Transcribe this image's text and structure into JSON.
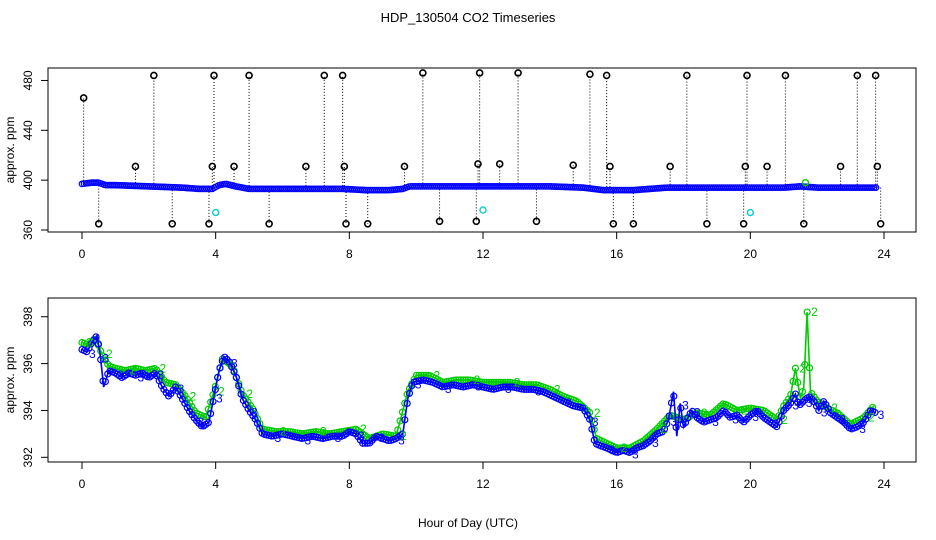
{
  "title": "HDP_130504  CO2 Timeseries",
  "xlabel": "Hour of Day (UTC)",
  "colors": {
    "black": "#000000",
    "blue": "#0000ff",
    "green": "#00cc00",
    "cyan": "#00cccc"
  },
  "chart_data": [
    {
      "type": "scatter",
      "panel": "top",
      "ylabel": "approx. ppm",
      "xlim": [
        0,
        24
      ],
      "ylim": [
        360,
        490
      ],
      "xticks": [
        0,
        4,
        8,
        12,
        16,
        20,
        24
      ],
      "yticks": [
        360,
        400,
        440,
        480
      ],
      "baseline": [
        [
          0.0,
          397
        ],
        [
          0.3,
          398
        ],
        [
          0.5,
          398
        ],
        [
          0.7,
          396
        ],
        [
          1.0,
          396
        ],
        [
          2.0,
          395
        ],
        [
          3.0,
          394
        ],
        [
          3.5,
          393
        ],
        [
          3.9,
          393
        ],
        [
          4.1,
          396
        ],
        [
          4.3,
          397
        ],
        [
          4.6,
          395
        ],
        [
          5.0,
          393
        ],
        [
          6.0,
          393
        ],
        [
          7.0,
          393
        ],
        [
          7.8,
          393
        ],
        [
          8.5,
          392
        ],
        [
          9.2,
          392
        ],
        [
          9.6,
          393
        ],
        [
          9.8,
          395
        ],
        [
          10.5,
          395
        ],
        [
          12.0,
          395
        ],
        [
          13.0,
          395
        ],
        [
          14.0,
          395
        ],
        [
          15.0,
          394
        ],
        [
          15.3,
          393
        ],
        [
          15.6,
          392
        ],
        [
          16.5,
          392
        ],
        [
          17.5,
          394
        ],
        [
          18.5,
          394
        ],
        [
          19.5,
          394
        ],
        [
          20.0,
          394
        ],
        [
          21.0,
          394
        ],
        [
          21.5,
          395
        ],
        [
          22.0,
          394
        ],
        [
          23.0,
          394
        ],
        [
          23.8,
          394
        ]
      ],
      "spikes": [
        {
          "x": 0.05,
          "y": 466
        },
        {
          "x": 0.5,
          "y": 365
        },
        {
          "x": 1.6,
          "y": 411
        },
        {
          "x": 2.15,
          "y": 484
        },
        {
          "x": 2.7,
          "y": 365
        },
        {
          "x": 3.8,
          "y": 365
        },
        {
          "x": 3.9,
          "y": 411
        },
        {
          "x": 3.95,
          "y": 484
        },
        {
          "x": 4.55,
          "y": 411
        },
        {
          "x": 5.0,
          "y": 484
        },
        {
          "x": 5.6,
          "y": 365
        },
        {
          "x": 6.7,
          "y": 411
        },
        {
          "x": 7.25,
          "y": 484
        },
        {
          "x": 7.8,
          "y": 484
        },
        {
          "x": 7.85,
          "y": 411
        },
        {
          "x": 7.9,
          "y": 365
        },
        {
          "x": 8.55,
          "y": 365
        },
        {
          "x": 9.65,
          "y": 411
        },
        {
          "x": 10.2,
          "y": 486
        },
        {
          "x": 10.7,
          "y": 367
        },
        {
          "x": 11.8,
          "y": 367
        },
        {
          "x": 11.85,
          "y": 413
        },
        {
          "x": 11.9,
          "y": 486
        },
        {
          "x": 12.5,
          "y": 413
        },
        {
          "x": 13.05,
          "y": 486
        },
        {
          "x": 13.6,
          "y": 367
        },
        {
          "x": 14.7,
          "y": 412
        },
        {
          "x": 15.2,
          "y": 485
        },
        {
          "x": 15.7,
          "y": 484
        },
        {
          "x": 15.8,
          "y": 411
        },
        {
          "x": 15.9,
          "y": 365
        },
        {
          "x": 16.5,
          "y": 365
        },
        {
          "x": 17.6,
          "y": 411
        },
        {
          "x": 18.1,
          "y": 484
        },
        {
          "x": 18.7,
          "y": 365
        },
        {
          "x": 19.8,
          "y": 365
        },
        {
          "x": 19.85,
          "y": 411
        },
        {
          "x": 19.9,
          "y": 484
        },
        {
          "x": 20.5,
          "y": 411
        },
        {
          "x": 21.05,
          "y": 484
        },
        {
          "x": 21.6,
          "y": 365
        },
        {
          "x": 22.7,
          "y": 411
        },
        {
          "x": 23.2,
          "y": 484
        },
        {
          "x": 23.75,
          "y": 484
        },
        {
          "x": 23.8,
          "y": 411
        },
        {
          "x": 23.9,
          "y": 365
        }
      ],
      "cyan_points": [
        {
          "x": 4.0,
          "y": 374
        },
        {
          "x": 12.0,
          "y": 376
        },
        {
          "x": 20.0,
          "y": 374
        }
      ],
      "green_points": [
        {
          "x": 21.65,
          "y": 398
        }
      ]
    },
    {
      "type": "line",
      "panel": "bottom",
      "ylabel": "approx. ppm",
      "xlim": [
        0,
        24
      ],
      "ylim": [
        391.8,
        398.8
      ],
      "xticks": [
        0,
        4,
        8,
        12,
        16,
        20,
        24
      ],
      "yticks": [
        392,
        394,
        396,
        398
      ],
      "series": [
        {
          "name": "3",
          "label": "3",
          "points": [
            [
              0.0,
              396.6
            ],
            [
              0.15,
              396.5
            ],
            [
              0.3,
              396.9
            ],
            [
              0.45,
              397.2
            ],
            [
              0.55,
              396.3
            ],
            [
              0.65,
              395.0
            ],
            [
              0.8,
              395.7
            ],
            [
              1.0,
              395.6
            ],
            [
              1.2,
              395.4
            ],
            [
              1.4,
              395.6
            ],
            [
              1.6,
              395.5
            ],
            [
              1.8,
              395.6
            ],
            [
              2.0,
              395.4
            ],
            [
              2.2,
              395.6
            ],
            [
              2.4,
              395.0
            ],
            [
              2.6,
              394.6
            ],
            [
              2.8,
              395.0
            ],
            [
              3.0,
              394.5
            ],
            [
              3.2,
              394.0
            ],
            [
              3.4,
              393.6
            ],
            [
              3.6,
              393.3
            ],
            [
              3.8,
              393.5
            ],
            [
              3.95,
              394.6
            ],
            [
              4.1,
              395.7
            ],
            [
              4.25,
              396.3
            ],
            [
              4.4,
              396.1
            ],
            [
              4.6,
              395.5
            ],
            [
              4.8,
              394.5
            ],
            [
              5.0,
              394.0
            ],
            [
              5.2,
              393.6
            ],
            [
              5.4,
              393.0
            ],
            [
              5.7,
              392.9
            ],
            [
              6.0,
              393.0
            ],
            [
              6.3,
              392.9
            ],
            [
              6.6,
              392.8
            ],
            [
              6.9,
              392.9
            ],
            [
              7.2,
              392.8
            ],
            [
              7.5,
              392.9
            ],
            [
              7.8,
              392.9
            ],
            [
              8.0,
              393.1
            ],
            [
              8.2,
              393.0
            ],
            [
              8.4,
              392.6
            ],
            [
              8.6,
              392.6
            ],
            [
              8.8,
              392.9
            ],
            [
              9.0,
              392.8
            ],
            [
              9.2,
              392.7
            ],
            [
              9.4,
              392.8
            ],
            [
              9.6,
              393.0
            ],
            [
              9.75,
              394.5
            ],
            [
              9.9,
              395.2
            ],
            [
              10.2,
              395.3
            ],
            [
              10.5,
              395.2
            ],
            [
              10.8,
              395.0
            ],
            [
              11.1,
              395.1
            ],
            [
              11.4,
              395.0
            ],
            [
              11.7,
              395.1
            ],
            [
              12.0,
              395.0
            ],
            [
              12.3,
              394.9
            ],
            [
              12.6,
              395.0
            ],
            [
              12.9,
              395.0
            ],
            [
              13.2,
              394.9
            ],
            [
              13.5,
              394.9
            ],
            [
              13.8,
              394.8
            ],
            [
              14.1,
              394.6
            ],
            [
              14.4,
              394.4
            ],
            [
              14.7,
              394.2
            ],
            [
              15.0,
              394.1
            ],
            [
              15.2,
              393.6
            ],
            [
              15.35,
              392.6
            ],
            [
              15.5,
              392.5
            ],
            [
              15.7,
              392.4
            ],
            [
              16.0,
              392.2
            ],
            [
              16.2,
              392.3
            ],
            [
              16.4,
              392.2
            ],
            [
              16.6,
              392.4
            ],
            [
              16.8,
              392.5
            ],
            [
              17.0,
              392.7
            ],
            [
              17.2,
              393.0
            ],
            [
              17.4,
              393.1
            ],
            [
              17.55,
              393.6
            ],
            [
              17.7,
              394.8
            ],
            [
              17.8,
              392.9
            ],
            [
              17.9,
              394.3
            ],
            [
              18.0,
              393.3
            ],
            [
              18.1,
              393.6
            ],
            [
              18.25,
              394.0
            ],
            [
              18.4,
              393.7
            ],
            [
              18.6,
              393.5
            ],
            [
              18.8,
              393.6
            ],
            [
              19.0,
              393.7
            ],
            [
              19.2,
              394.0
            ],
            [
              19.4,
              393.7
            ],
            [
              19.6,
              393.8
            ],
            [
              19.8,
              393.5
            ],
            [
              20.0,
              393.8
            ],
            [
              20.2,
              394.0
            ],
            [
              20.4,
              393.7
            ],
            [
              20.6,
              393.5
            ],
            [
              20.8,
              393.3
            ],
            [
              21.0,
              394.0
            ],
            [
              21.2,
              394.3
            ],
            [
              21.35,
              394.7
            ],
            [
              21.45,
              394.2
            ],
            [
              21.6,
              394.4
            ],
            [
              21.75,
              394.6
            ],
            [
              21.9,
              394.4
            ],
            [
              22.05,
              394.0
            ],
            [
              22.2,
              394.4
            ],
            [
              22.4,
              393.9
            ],
            [
              22.6,
              393.7
            ],
            [
              22.8,
              393.5
            ],
            [
              23.0,
              393.2
            ],
            [
              23.2,
              393.3
            ],
            [
              23.4,
              393.5
            ],
            [
              23.6,
              394.0
            ],
            [
              23.75,
              393.9
            ]
          ]
        },
        {
          "name": "2",
          "label": "2",
          "points": [
            [
              0.0,
              396.9
            ],
            [
              0.2,
              396.8
            ],
            [
              0.4,
              397.1
            ],
            [
              0.6,
              396.4
            ],
            [
              0.8,
              395.9
            ],
            [
              1.0,
              395.8
            ],
            [
              1.3,
              395.7
            ],
            [
              1.6,
              395.8
            ],
            [
              1.9,
              395.7
            ],
            [
              2.2,
              395.8
            ],
            [
              2.5,
              395.2
            ],
            [
              2.8,
              395.1
            ],
            [
              3.1,
              394.6
            ],
            [
              3.4,
              393.9
            ],
            [
              3.7,
              393.7
            ],
            [
              3.95,
              394.8
            ],
            [
              4.2,
              396.2
            ],
            [
              4.5,
              395.9
            ],
            [
              4.8,
              394.7
            ],
            [
              5.1,
              394.1
            ],
            [
              5.4,
              393.2
            ],
            [
              5.8,
              393.1
            ],
            [
              6.2,
              393.1
            ],
            [
              6.6,
              393.0
            ],
            [
              7.0,
              393.1
            ],
            [
              7.4,
              393.0
            ],
            [
              7.8,
              393.1
            ],
            [
              8.2,
              393.2
            ],
            [
              8.6,
              392.8
            ],
            [
              9.0,
              393.0
            ],
            [
              9.4,
              392.9
            ],
            [
              9.75,
              394.8
            ],
            [
              10.0,
              395.5
            ],
            [
              10.4,
              395.5
            ],
            [
              10.8,
              395.2
            ],
            [
              11.2,
              395.3
            ],
            [
              11.6,
              395.3
            ],
            [
              12.0,
              395.2
            ],
            [
              12.4,
              395.2
            ],
            [
              12.8,
              395.2
            ],
            [
              13.2,
              395.1
            ],
            [
              13.6,
              395.1
            ],
            [
              14.0,
              394.9
            ],
            [
              14.4,
              394.6
            ],
            [
              14.8,
              394.4
            ],
            [
              15.2,
              393.9
            ],
            [
              15.4,
              392.8
            ],
            [
              15.7,
              392.6
            ],
            [
              16.0,
              392.4
            ],
            [
              16.4,
              392.4
            ],
            [
              16.8,
              392.7
            ],
            [
              17.2,
              393.2
            ],
            [
              17.6,
              393.8
            ],
            [
              18.0,
              393.6
            ],
            [
              18.4,
              393.9
            ],
            [
              18.8,
              393.8
            ],
            [
              19.2,
              394.3
            ],
            [
              19.6,
              394.0
            ],
            [
              20.0,
              394.1
            ],
            [
              20.4,
              394.0
            ],
            [
              20.8,
              393.6
            ],
            [
              21.0,
              394.2
            ],
            [
              21.2,
              394.6
            ],
            [
              21.35,
              395.8
            ],
            [
              21.5,
              394.5
            ],
            [
              21.6,
              395.0
            ],
            [
              21.7,
              398.2
            ],
            [
              21.8,
              394.8
            ],
            [
              22.0,
              394.4
            ],
            [
              22.3,
              394.1
            ],
            [
              22.6,
              393.9
            ],
            [
              23.0,
              393.4
            ],
            [
              23.4,
              393.7
            ],
            [
              23.7,
              394.2
            ]
          ]
        }
      ]
    }
  ]
}
